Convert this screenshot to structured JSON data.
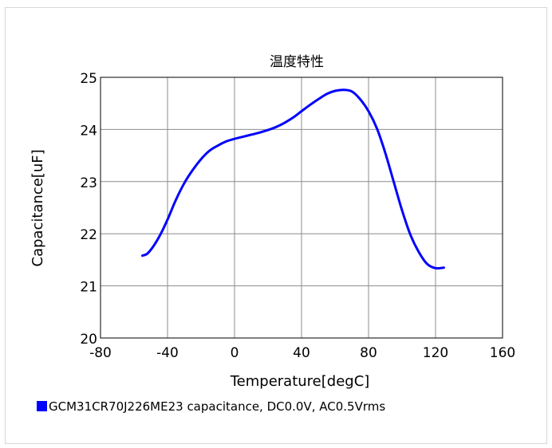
{
  "chart_data": {
    "type": "line",
    "title": "温度特性",
    "xlabel": "Temperature[degC]",
    "ylabel": "Capacitance[uF]",
    "xlim": [
      -80,
      160
    ],
    "ylim": [
      20,
      25
    ],
    "xticks": [
      -80,
      -40,
      0,
      40,
      80,
      120,
      160
    ],
    "yticks": [
      20,
      21,
      22,
      23,
      24,
      25
    ],
    "grid": true,
    "legend_position": "bottom-left",
    "series": [
      {
        "name": "GCM31CR70J226ME23 capacitance, DC0.0V, AC0.5Vrms",
        "color": "#0000ff",
        "x": [
          -55,
          -52,
          -48,
          -44,
          -40,
          -35,
          -30,
          -25,
          -20,
          -15,
          -10,
          -5,
          0,
          5,
          10,
          15,
          20,
          25,
          30,
          35,
          40,
          45,
          50,
          55,
          60,
          65,
          70,
          75,
          80,
          85,
          90,
          95,
          100,
          105,
          110,
          115,
          120,
          125
        ],
        "y": [
          21.58,
          21.62,
          21.78,
          22.0,
          22.27,
          22.65,
          22.97,
          23.22,
          23.43,
          23.59,
          23.69,
          23.77,
          23.82,
          23.86,
          23.9,
          23.94,
          23.99,
          24.05,
          24.13,
          24.23,
          24.35,
          24.47,
          24.58,
          24.68,
          24.74,
          24.76,
          24.73,
          24.58,
          24.35,
          24.02,
          23.55,
          23.0,
          22.45,
          21.98,
          21.65,
          21.42,
          21.34,
          21.35
        ]
      }
    ]
  }
}
